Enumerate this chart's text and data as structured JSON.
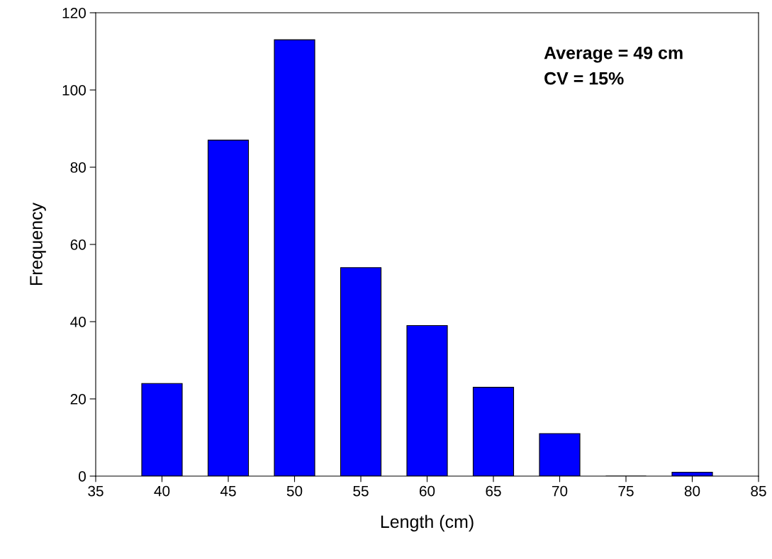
{
  "chart_data": {
    "type": "bar",
    "xlabel": "Length (cm)",
    "ylabel": "Frequency",
    "x": [
      40,
      45,
      50,
      55,
      60,
      65,
      70,
      75,
      80
    ],
    "values": [
      24,
      87,
      113,
      54,
      39,
      23,
      11,
      0,
      1
    ],
    "color": "#0000ff",
    "xlim": [
      35,
      85
    ],
    "xticks": [
      35,
      40,
      45,
      50,
      55,
      60,
      65,
      70,
      75,
      80,
      85
    ],
    "ylim": [
      0,
      120
    ],
    "yticks": [
      0,
      20,
      40,
      60,
      80,
      100,
      120
    ],
    "grid": false,
    "annotations": [
      "Average = 49 cm",
      "CV = 15%"
    ]
  }
}
